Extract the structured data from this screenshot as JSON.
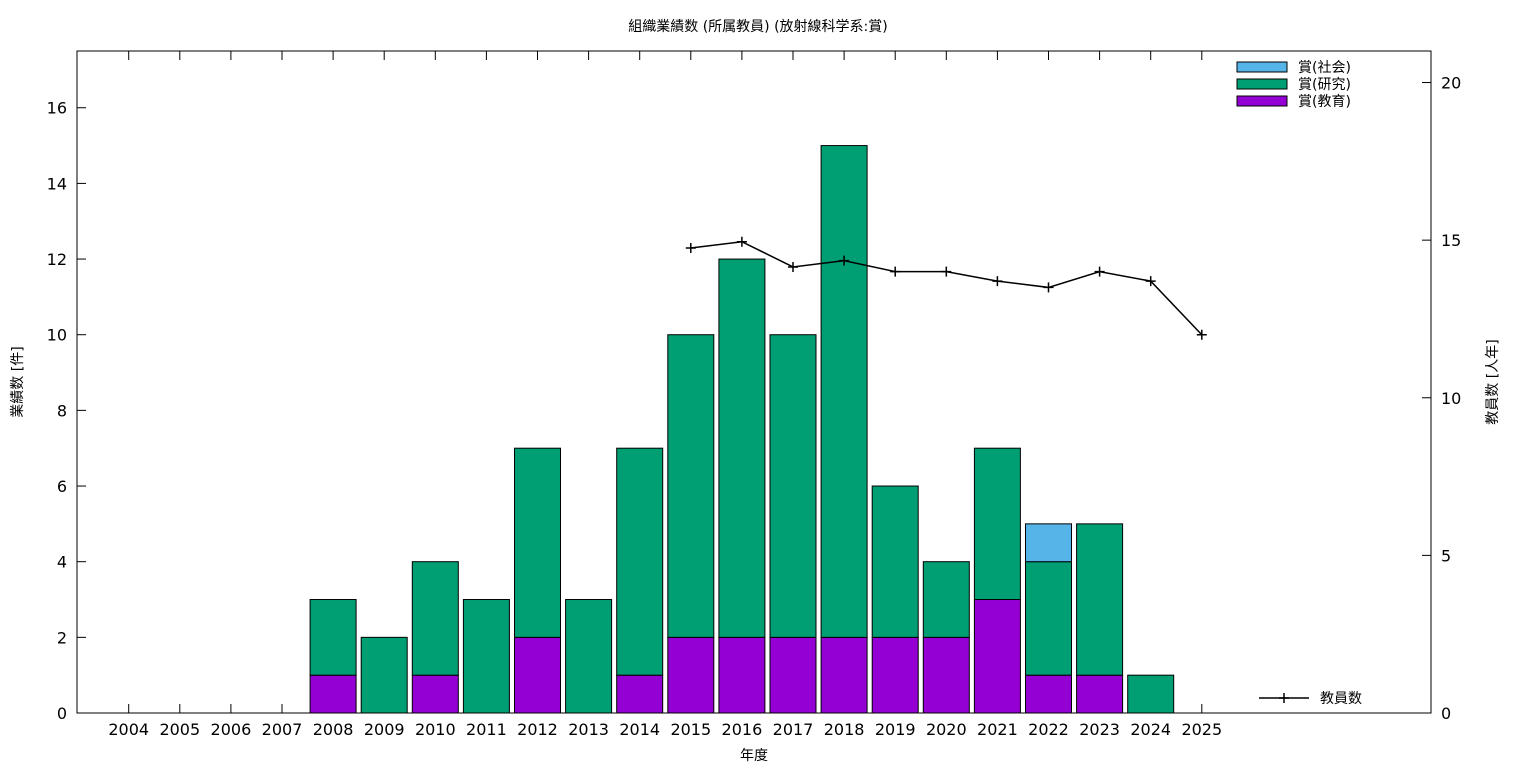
{
  "chart_data": {
    "type": "bar",
    "title": "組織業績数 (所属教員) (放射線科学系:賞)",
    "xlabel": "年度",
    "ylabel": "業績数 [件]",
    "y2label": "教員数 [人年]",
    "categories": [
      "2004",
      "2005",
      "2006",
      "2007",
      "2008",
      "2009",
      "2010",
      "2011",
      "2012",
      "2013",
      "2014",
      "2015",
      "2016",
      "2017",
      "2018",
      "2019",
      "2020",
      "2021",
      "2022",
      "2023",
      "2024",
      "2025"
    ],
    "ylim": [
      0,
      17.5
    ],
    "y2lim": [
      0,
      21
    ],
    "yticks": [
      0,
      2,
      4,
      6,
      8,
      10,
      12,
      14,
      16
    ],
    "y2ticks": [
      0,
      5,
      10,
      15,
      20
    ],
    "stacked": true,
    "series": [
      {
        "name": "賞(教育)",
        "color": "#9400d3",
        "values": [
          0,
          0,
          0,
          0,
          1,
          0,
          1,
          0,
          2,
          0,
          1,
          2,
          2,
          2,
          2,
          2,
          2,
          3,
          1,
          1,
          0,
          0
        ]
      },
      {
        "name": "賞(研究)",
        "color": "#009e73",
        "values": [
          0,
          0,
          0,
          0,
          2,
          2,
          3,
          3,
          5,
          3,
          6,
          8,
          10,
          8,
          13,
          4,
          2,
          4,
          3,
          4,
          1,
          0
        ]
      },
      {
        "name": "賞(社会)",
        "color": "#56b4e9",
        "values": [
          0,
          0,
          0,
          0,
          0,
          0,
          0,
          0,
          0,
          0,
          0,
          0,
          0,
          0,
          0,
          0,
          0,
          0,
          1,
          0,
          0,
          0
        ]
      }
    ],
    "line_series": {
      "name": "教員数",
      "axis": "y2",
      "color": "#000000",
      "x": [
        "2015",
        "2016",
        "2017",
        "2018",
        "2019",
        "2020",
        "2021",
        "2022",
        "2023",
        "2024",
        "2025"
      ],
      "values": [
        14.75,
        14.95,
        14.15,
        14.35,
        14.0,
        14.0,
        13.7,
        13.5,
        14.0,
        13.7,
        12.0
      ]
    },
    "legend_position": "top-right",
    "line_legend_position": "bottom-right"
  }
}
